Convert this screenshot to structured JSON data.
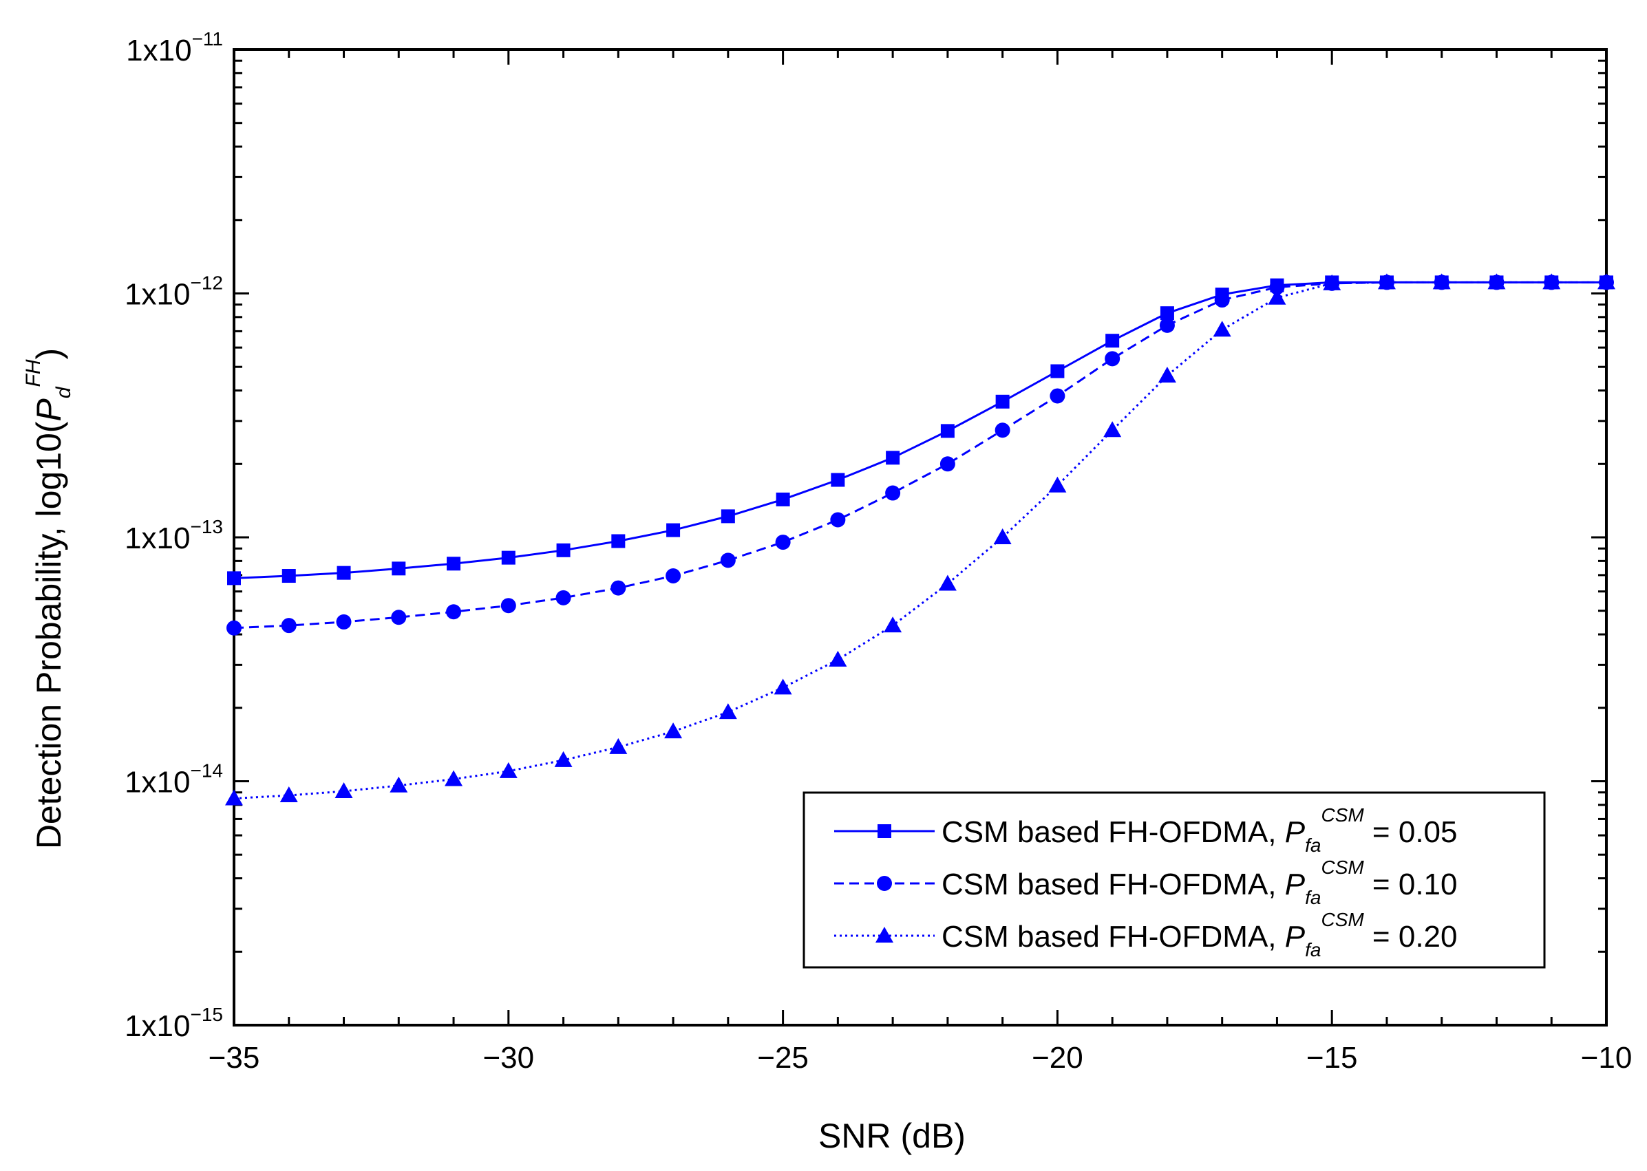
{
  "chart_data": {
    "type": "line",
    "xlabel": "SNR (dB)",
    "ylabel": {
      "prefix": "Detection Probability, log10(",
      "symbol": "P",
      "subscript": "d",
      "superscript": "FH",
      "suffix": ")"
    },
    "xlim": [
      -35,
      -10
    ],
    "ylim": [
      1e-15,
      1e-11
    ],
    "yscale": "log",
    "x_ticks": [
      -35,
      -30,
      -25,
      -20,
      -15,
      -10
    ],
    "x_tick_labels": [
      "−35",
      "−30",
      "−25",
      "−20",
      "−15",
      "−10"
    ],
    "y_ticks": [
      {
        "value": 1e-15,
        "base": "1x10",
        "exp": "−15"
      },
      {
        "value": 1e-14,
        "base": "1x10",
        "exp": "−14"
      },
      {
        "value": 1e-13,
        "base": "1x10",
        "exp": "−13"
      },
      {
        "value": 1e-12,
        "base": "1x10",
        "exp": "−12"
      },
      {
        "value": 1e-11,
        "base": "1x10",
        "exp": "−11"
      }
    ],
    "x": [
      -35,
      -34,
      -33,
      -32,
      -31,
      -30,
      -29,
      -28,
      -27,
      -26,
      -25,
      -24,
      -23,
      -22,
      -21,
      -20,
      -19,
      -18,
      -17,
      -16,
      -15,
      -14,
      -13,
      -12,
      -11,
      -10
    ],
    "series": [
      {
        "name": "CSM based FH-OFDMA, Pfa CSM = 0.05",
        "label_text": "CSM based FH-OFDMA, ",
        "pfa_symbol": "P",
        "pfa_sub": "fa",
        "pfa_sup": "CSM",
        "value_text": " = 0.05",
        "marker": "square",
        "dash": "solid",
        "values": [
          6.8e-14,
          6.95e-14,
          7.15e-14,
          7.45e-14,
          7.8e-14,
          8.25e-14,
          8.85e-14,
          9.65e-14,
          1.07e-13,
          1.22e-13,
          1.43e-13,
          1.72e-13,
          2.12e-13,
          2.73e-13,
          3.6e-13,
          4.8e-13,
          6.4e-13,
          8.3e-13,
          9.9e-13,
          1.08e-12,
          1.11e-12,
          1.11e-12,
          1.11e-12,
          1.11e-12,
          1.11e-12,
          1.11e-12
        ]
      },
      {
        "name": "CSM based FH-OFDMA, Pfa CSM = 0.10",
        "label_text": "CSM based FH-OFDMA, ",
        "pfa_symbol": "P",
        "pfa_sub": "fa",
        "pfa_sup": "CSM",
        "value_text": " = 0.10",
        "marker": "circle",
        "dash": "dashed",
        "values": [
          4.25e-14,
          4.35e-14,
          4.5e-14,
          4.7e-14,
          4.95e-14,
          5.25e-14,
          5.65e-14,
          6.2e-14,
          6.95e-14,
          8.05e-14,
          9.55e-14,
          1.18e-13,
          1.52e-13,
          2e-13,
          2.75e-13,
          3.8e-13,
          5.4e-13,
          7.4e-13,
          9.4e-13,
          1.06e-12,
          1.1e-12,
          1.11e-12,
          1.11e-12,
          1.11e-12,
          1.11e-12,
          1.11e-12
        ]
      },
      {
        "name": "CSM based FH-OFDMA, Pfa CSM = 0.20",
        "label_text": "CSM based FH-OFDMA, ",
        "pfa_symbol": "P",
        "pfa_sub": "fa",
        "pfa_sup": "CSM",
        "value_text": " = 0.20",
        "marker": "triangle",
        "dash": "dotted",
        "values": [
          8.5e-15,
          8.75e-15,
          9.1e-15,
          9.6e-15,
          1.02e-14,
          1.1e-14,
          1.22e-14,
          1.38e-14,
          1.6e-14,
          1.92e-14,
          2.42e-14,
          3.15e-14,
          4.35e-14,
          6.45e-14,
          1e-13,
          1.63e-13,
          2.75e-13,
          4.6e-13,
          7.1e-13,
          9.6e-13,
          1.1e-12,
          1.11e-12,
          1.11e-12,
          1.11e-12,
          1.11e-12,
          1.11e-12
        ]
      }
    ],
    "legend_position": "bottom-right",
    "grid": false,
    "line_color": "#0000ff"
  }
}
